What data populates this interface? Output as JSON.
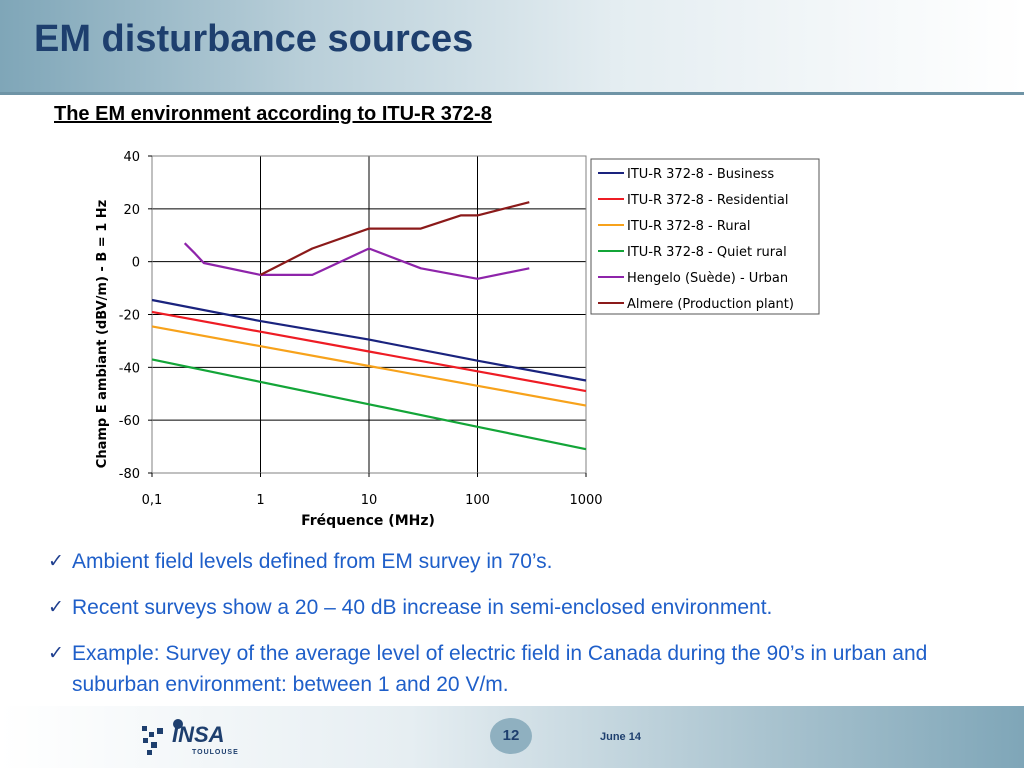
{
  "slide": {
    "title": "EM disturbance sources",
    "subtitle": "The EM environment according to ITU-R 372-8"
  },
  "bullets": [
    "Ambient field levels defined from EM survey in 70’s.",
    "Recent surveys show a 20 – 40 dB increase in semi-enclosed environment.",
    "Example: Survey of the average level of electric field in Canada during the 90’s in urban and suburban environment: between 1 and 20 V/m."
  ],
  "footer": {
    "logo_text": "INSA",
    "logo_subtext": "TOULOUSE",
    "page_number": "12",
    "date": "June 14"
  },
  "chart_data": {
    "type": "line",
    "title": "",
    "xlabel": "Fréquence (MHz)",
    "ylabel": "Champ E ambiant (dBV/m) - B = 1 Hz",
    "xscale": "log",
    "xlim": [
      0.1,
      1000
    ],
    "ylim": [
      -80,
      40
    ],
    "xticks": [
      0.1,
      1,
      10,
      100,
      1000
    ],
    "xtick_labels": [
      "0,1",
      "1",
      "10",
      "100",
      "1000"
    ],
    "yticks": [
      -80,
      -60,
      -40,
      -20,
      0,
      20,
      40
    ],
    "grid": true,
    "legend_position": "top-right",
    "series": [
      {
        "name": "ITU-R 372-8 - Business",
        "color": "#1a237e",
        "points": [
          [
            0.1,
            -14.5
          ],
          [
            1,
            -22.5
          ],
          [
            10,
            -29.5
          ],
          [
            100,
            -37.5
          ],
          [
            1000,
            -45
          ]
        ]
      },
      {
        "name": "ITU-R 372-8 - Residential",
        "color": "#ee1c24",
        "points": [
          [
            0.1,
            -19
          ],
          [
            1,
            -26.5
          ],
          [
            10,
            -34
          ],
          [
            100,
            -41.5
          ],
          [
            1000,
            -49
          ]
        ]
      },
      {
        "name": "ITU-R 372-8 - Rural",
        "color": "#f7a21b",
        "points": [
          [
            0.1,
            -24.5
          ],
          [
            1,
            -32
          ],
          [
            10,
            -39.5
          ],
          [
            100,
            -47
          ],
          [
            1000,
            -54.5
          ]
        ]
      },
      {
        "name": "ITU-R 372-8 - Quiet rural",
        "color": "#13a538",
        "points": [
          [
            0.1,
            -37
          ],
          [
            1,
            -45.5
          ],
          [
            10,
            -54
          ],
          [
            100,
            -62.5
          ],
          [
            1000,
            -71
          ]
        ]
      },
      {
        "name": "Hengelo (Suède) - Urban",
        "color": "#8e24aa",
        "points": [
          [
            0.2,
            7
          ],
          [
            0.25,
            3
          ],
          [
            0.3,
            -0.5
          ],
          [
            1,
            -5
          ],
          [
            3,
            -5
          ],
          [
            10,
            5
          ],
          [
            30,
            -2.5
          ],
          [
            100,
            -6.5
          ],
          [
            300,
            -2.5
          ]
        ]
      },
      {
        "name": "Almere (Production plant)",
        "color": "#8b1a1a",
        "points": [
          [
            1,
            -5
          ],
          [
            3,
            5
          ],
          [
            10,
            12.5
          ],
          [
            30,
            12.5
          ],
          [
            70,
            17.5
          ],
          [
            100,
            17.5
          ],
          [
            300,
            22.5
          ]
        ]
      }
    ]
  }
}
